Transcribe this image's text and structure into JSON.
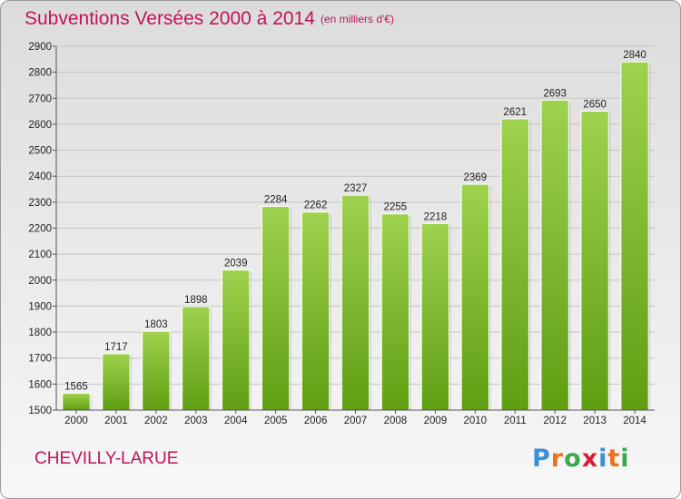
{
  "title": "Subventions Versées 2000 à 2014",
  "unit_note": "(en milliers d'€)",
  "commune": "CHEVILLY-LARUE",
  "logo": {
    "letters": [
      "P",
      "r",
      "o",
      "x",
      "i",
      "t",
      "i"
    ],
    "colors": [
      "#3a8fd6",
      "#e8731c",
      "#3aa84b",
      "#d81e3a",
      "#3a8fd6",
      "#e8731c",
      "#3aa84b"
    ]
  },
  "chart_data": {
    "type": "bar",
    "title": "Subventions Versées 2000 à 2014",
    "subtitle": "(en milliers d'€)",
    "categories": [
      "2000",
      "2001",
      "2002",
      "2003",
      "2004",
      "2005",
      "2006",
      "2007",
      "2008",
      "2009",
      "2010",
      "2011",
      "2012",
      "2013",
      "2014"
    ],
    "values": [
      1565,
      1717,
      1803,
      1898,
      2039,
      2284,
      2262,
      2327,
      2255,
      2218,
      2369,
      2621,
      2693,
      2650,
      2840
    ],
    "ylim": [
      1500,
      2900
    ],
    "yticks": [
      1500,
      1600,
      1700,
      1800,
      1900,
      2000,
      2100,
      2200,
      2300,
      2400,
      2500,
      2600,
      2700,
      2800,
      2900
    ],
    "grid": true,
    "bar_color_top": "#9fd24e",
    "bar_color_bottom": "#5f9e12"
  }
}
